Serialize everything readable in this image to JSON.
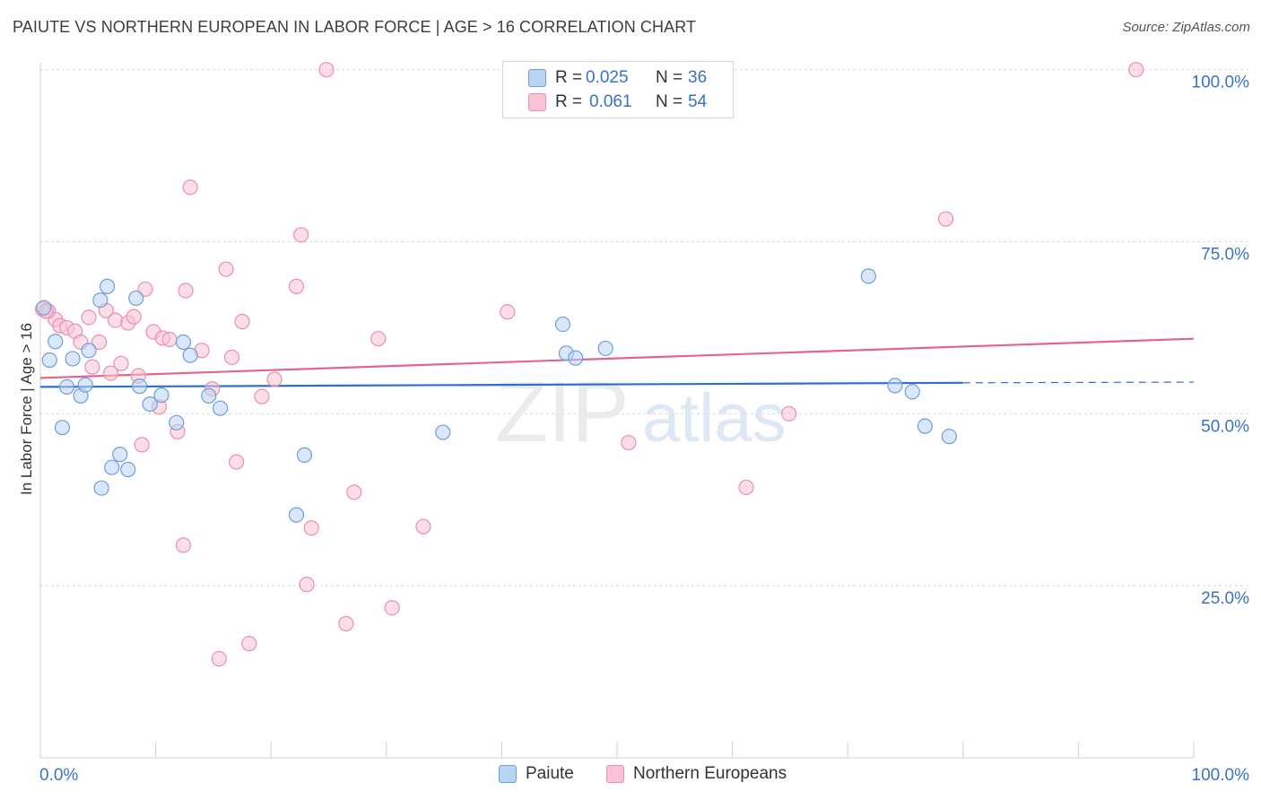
{
  "header": {
    "title": "PAIUTE VS NORTHERN EUROPEAN IN LABOR FORCE | AGE > 16 CORRELATION CHART",
    "source": "Source: ZipAtlas.com"
  },
  "watermark": {
    "zip": "ZIP",
    "atlas": "atlas"
  },
  "legend": {
    "r_label": "R =",
    "n_label": "N =",
    "paiute": {
      "r": "0.025",
      "n": "36"
    },
    "northern": {
      "r": "0.061",
      "n": "54"
    }
  },
  "colors": {
    "paiute_fill": "#b9d3f3",
    "paiute_stroke": "#6e9fdc",
    "paiute_line": "#2f6fcf",
    "northern_fill": "#f9c3d3",
    "northern_stroke": "#ea8fad",
    "northern_line": "#e0668f",
    "axis_text": "#3a72c8"
  },
  "chart_data": {
    "type": "scatter",
    "title": "PAIUTE VS NORTHERN EUROPEAN IN LABOR FORCE | AGE > 16 CORRELATION CHART",
    "xlabel": "",
    "ylabel": "In Labor Force | Age > 16",
    "xlim": [
      0,
      100
    ],
    "ylim": [
      0,
      101
    ],
    "x_tick_labels": [
      "0.0%",
      "100.0%"
    ],
    "y_ticks": [
      25,
      50,
      75,
      100
    ],
    "y_tick_labels": [
      "25.0%",
      "50.0%",
      "75.0%",
      "100.0%"
    ],
    "grid": "horizontal dashed",
    "legend_position": "top-center",
    "series": [
      {
        "name": "Paiute",
        "r": 0.025,
        "n": 36,
        "trend": {
          "x0": 0,
          "y0": 53.9,
          "x1": 80,
          "y1": 54.5,
          "dashed_to": 100,
          "dashed_y": 54.6
        },
        "points": [
          [
            0.3,
            65.4
          ],
          [
            0.8,
            57.8
          ],
          [
            1.3,
            60.5
          ],
          [
            1.9,
            48.0
          ],
          [
            2.3,
            53.9
          ],
          [
            2.8,
            58.0
          ],
          [
            3.5,
            52.6
          ],
          [
            3.9,
            54.2
          ],
          [
            4.2,
            59.2
          ],
          [
            5.2,
            66.5
          ],
          [
            5.3,
            39.2
          ],
          [
            5.8,
            68.5
          ],
          [
            6.2,
            42.2
          ],
          [
            6.9,
            44.1
          ],
          [
            7.6,
            41.9
          ],
          [
            8.3,
            66.8
          ],
          [
            8.6,
            54.0
          ],
          [
            9.5,
            51.4
          ],
          [
            10.5,
            52.7
          ],
          [
            11.8,
            48.7
          ],
          [
            12.4,
            60.4
          ],
          [
            13.0,
            58.5
          ],
          [
            14.6,
            52.6
          ],
          [
            15.6,
            50.8
          ],
          [
            22.2,
            35.3
          ],
          [
            22.9,
            44.0
          ],
          [
            34.9,
            47.3
          ],
          [
            45.3,
            63.0
          ],
          [
            45.6,
            58.8
          ],
          [
            46.4,
            58.1
          ],
          [
            49.0,
            59.5
          ],
          [
            71.8,
            70.0
          ],
          [
            74.1,
            54.1
          ],
          [
            75.6,
            53.2
          ],
          [
            76.7,
            48.2
          ],
          [
            78.8,
            46.7
          ]
        ]
      },
      {
        "name": "Northern Europeans",
        "r": 0.061,
        "n": 54,
        "trend": {
          "x0": 0,
          "y0": 55.2,
          "x1": 100,
          "y1": 60.9
        },
        "points": [
          [
            0.2,
            65.2
          ],
          [
            0.7,
            64.9
          ],
          [
            1.3,
            63.7
          ],
          [
            1.7,
            62.8
          ],
          [
            2.3,
            62.5
          ],
          [
            3.0,
            62.0
          ],
          [
            3.5,
            60.4
          ],
          [
            4.2,
            64.0
          ],
          [
            4.5,
            56.8
          ],
          [
            5.1,
            60.4
          ],
          [
            5.7,
            65.0
          ],
          [
            6.1,
            55.9
          ],
          [
            6.5,
            63.6
          ],
          [
            7.0,
            57.3
          ],
          [
            7.6,
            63.2
          ],
          [
            8.1,
            64.1
          ],
          [
            8.5,
            55.5
          ],
          [
            8.8,
            45.5
          ],
          [
            9.1,
            68.1
          ],
          [
            9.8,
            61.9
          ],
          [
            10.3,
            51.0
          ],
          [
            10.6,
            61.0
          ],
          [
            11.2,
            60.8
          ],
          [
            11.9,
            47.4
          ],
          [
            12.4,
            30.9
          ],
          [
            12.6,
            67.9
          ],
          [
            13.0,
            82.9
          ],
          [
            14.0,
            59.2
          ],
          [
            14.9,
            53.6
          ],
          [
            15.5,
            14.4
          ],
          [
            16.1,
            71.0
          ],
          [
            16.6,
            58.2
          ],
          [
            17.0,
            43.0
          ],
          [
            17.5,
            63.4
          ],
          [
            18.1,
            16.6
          ],
          [
            19.2,
            52.5
          ],
          [
            20.3,
            55.0
          ],
          [
            22.2,
            68.5
          ],
          [
            22.6,
            76.0
          ],
          [
            23.1,
            25.2
          ],
          [
            23.5,
            33.4
          ],
          [
            24.8,
            100.0
          ],
          [
            26.5,
            19.5
          ],
          [
            27.2,
            38.6
          ],
          [
            29.3,
            60.9
          ],
          [
            30.5,
            21.8
          ],
          [
            33.2,
            33.6
          ],
          [
            40.5,
            64.8
          ],
          [
            51.0,
            45.8
          ],
          [
            61.2,
            39.3
          ],
          [
            64.9,
            50.0
          ],
          [
            78.5,
            78.3
          ],
          [
            95.0,
            100.0
          ],
          [
            0.5,
            64.9
          ]
        ]
      }
    ]
  },
  "bottom_legend": [
    "Paiute",
    "Northern Europeans"
  ]
}
